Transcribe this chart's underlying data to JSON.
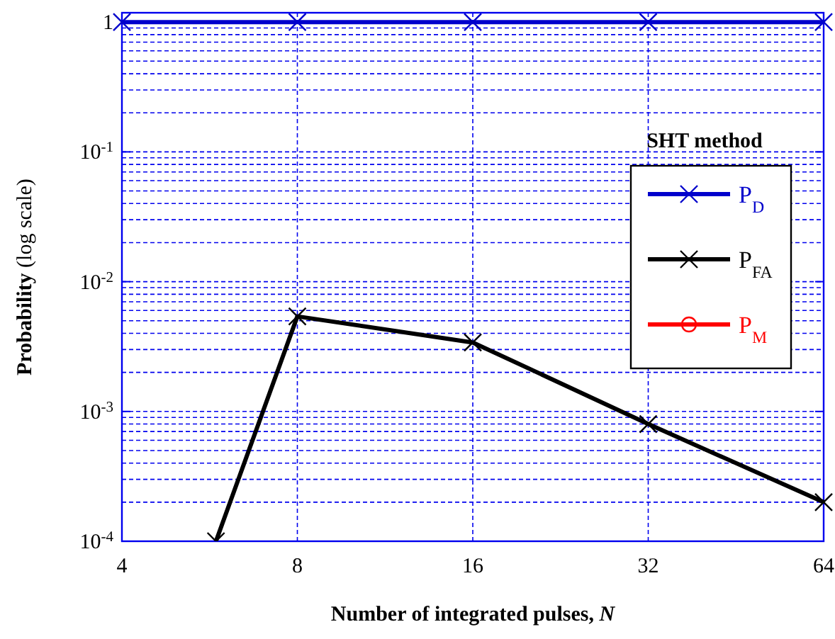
{
  "chart_data": {
    "type": "line",
    "xlabel": "Number of integrated pulses,  N",
    "ylabel": "Probability (log scale)",
    "legend_title": "SHT method",
    "log": "xy",
    "xlim": [
      4,
      64
    ],
    "xticks": [
      4,
      8,
      16,
      32,
      64
    ],
    "ylim": [
      0.0001,
      1.18
    ],
    "yticks": [
      {
        "value": 0.0001,
        "label": "10$^{-4}$"
      },
      {
        "value": 0.001,
        "label": "10$^{-3}$"
      },
      {
        "value": 0.01,
        "label": "10$^{-2}$"
      },
      {
        "value": 0.1,
        "label": "10$^{-1}$"
      },
      1
    ],
    "grid": true,
    "legend": "right",
    "line_style": "solid",
    "series": [
      {
        "name": "P$_{D}$",
        "color": "#0000cc",
        "marker": "cross",
        "x": [
          4,
          8,
          16,
          32,
          64
        ],
        "values": [
          1,
          1,
          1,
          1,
          1
        ]
      },
      {
        "name": "P$_{FA}$",
        "color": "#000000",
        "marker": "cross",
        "x": [
          5.8,
          8,
          16,
          32,
          64
        ],
        "values": [
          0.0001,
          0.0054,
          0.0034,
          0.0008,
          0.0002
        ]
      },
      {
        "name": "P$_{M}$",
        "color": "#ff0000",
        "marker": "circle"
      }
    ]
  }
}
